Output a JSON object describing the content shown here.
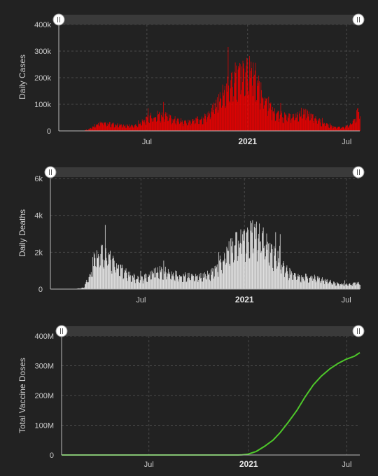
{
  "colors": {
    "background": "#222222",
    "grid": "#4a4a4a",
    "axis": "#bbbbbb",
    "text": "#cccccc",
    "scrollbar_track": "#3a3a3a",
    "handle": "#ffffff"
  },
  "chart_data": [
    {
      "type": "bar",
      "ylabel": "Daily Cases",
      "color": "#ee0000",
      "ylim": [
        0,
        400000
      ],
      "yticks": [
        0,
        100000,
        200000,
        300000,
        400000
      ],
      "ytick_labels": [
        "0",
        "100k",
        "200k",
        "300k",
        "400k"
      ],
      "xticks": [
        {
          "date": "2020-07-01",
          "label": "Jul",
          "bold": false
        },
        {
          "date": "2021-01-01",
          "label": "2021",
          "bold": true
        },
        {
          "date": "2021-07-01",
          "label": "Jul",
          "bold": false
        }
      ],
      "xlim": [
        "2020-01-22",
        "2021-07-25"
      ],
      "grid": true,
      "range_slider": true,
      "series_profile": [
        [
          "2020-01-22",
          0
        ],
        [
          "2020-03-05",
          200
        ],
        [
          "2020-03-15",
          5000
        ],
        [
          "2020-03-25",
          18000
        ],
        [
          "2020-04-05",
          31000
        ],
        [
          "2020-04-15",
          30000
        ],
        [
          "2020-05-01",
          27000
        ],
        [
          "2020-05-20",
          22000
        ],
        [
          "2020-06-05",
          21000
        ],
        [
          "2020-06-15",
          25000
        ],
        [
          "2020-06-25",
          42000
        ],
        [
          "2020-07-05",
          55000
        ],
        [
          "2020-07-20",
          67000
        ],
        [
          "2020-07-31",
          63000
        ],
        [
          "2020-08-15",
          50000
        ],
        [
          "2020-09-01",
          40000
        ],
        [
          "2020-09-10",
          34000
        ],
        [
          "2020-09-25",
          42000
        ],
        [
          "2020-10-10",
          52000
        ],
        [
          "2020-10-25",
          75000
        ],
        [
          "2020-11-05",
          110000
        ],
        [
          "2020-11-15",
          160000
        ],
        [
          "2020-11-25",
          175000
        ],
        [
          "2020-12-05",
          210000
        ],
        [
          "2020-12-18",
          230000
        ],
        [
          "2021-01-02",
          230000
        ],
        [
          "2021-01-08",
          270000
        ],
        [
          "2021-01-15",
          215000
        ],
        [
          "2021-01-25",
          160000
        ],
        [
          "2021-02-05",
          120000
        ],
        [
          "2021-02-15",
          80000
        ],
        [
          "2021-02-28",
          65000
        ],
        [
          "2021-03-15",
          55000
        ],
        [
          "2021-04-01",
          62000
        ],
        [
          "2021-04-15",
          72000
        ],
        [
          "2021-04-25",
          62000
        ],
        [
          "2021-05-10",
          42000
        ],
        [
          "2021-05-25",
          25000
        ],
        [
          "2021-06-10",
          15000
        ],
        [
          "2021-06-25",
          14000
        ],
        [
          "2021-07-05",
          22000
        ],
        [
          "2021-07-15",
          50000
        ],
        [
          "2021-07-25",
          90000
        ]
      ]
    },
    {
      "type": "bar",
      "ylabel": "Daily Deaths",
      "color": "#eeeeee",
      "ylim": [
        0,
        6000
      ],
      "yticks": [
        0,
        2000,
        4000,
        6000
      ],
      "ytick_labels": [
        "0",
        "2k",
        "4k",
        "6k"
      ],
      "xticks": [
        {
          "date": "2020-07-01",
          "label": "Jul",
          "bold": false
        },
        {
          "date": "2021-01-01",
          "label": "2021",
          "bold": true
        },
        {
          "date": "2021-07-01",
          "label": "Jul",
          "bold": false
        }
      ],
      "xlim": [
        "2020-01-22",
        "2021-07-25"
      ],
      "grid": true,
      "range_slider": true,
      "series_profile": [
        [
          "2020-01-22",
          0
        ],
        [
          "2020-03-05",
          5
        ],
        [
          "2020-03-20",
          80
        ],
        [
          "2020-03-31",
          700
        ],
        [
          "2020-04-08",
          1700
        ],
        [
          "2020-04-15",
          2100
        ],
        [
          "2020-04-25",
          2000
        ],
        [
          "2020-05-05",
          1900
        ],
        [
          "2020-05-20",
          1350
        ],
        [
          "2020-06-01",
          1000
        ],
        [
          "2020-06-15",
          750
        ],
        [
          "2020-06-30",
          600
        ],
        [
          "2020-07-15",
          800
        ],
        [
          "2020-07-25",
          1000
        ],
        [
          "2020-08-05",
          1100
        ],
        [
          "2020-08-20",
          950
        ],
        [
          "2020-09-05",
          800
        ],
        [
          "2020-09-20",
          750
        ],
        [
          "2020-10-05",
          700
        ],
        [
          "2020-10-20",
          750
        ],
        [
          "2020-11-05",
          1000
        ],
        [
          "2020-11-20",
          1600
        ],
        [
          "2020-12-05",
          2300
        ],
        [
          "2020-12-20",
          2750
        ],
        [
          "2021-01-05",
          3000
        ],
        [
          "2021-01-15",
          3300
        ],
        [
          "2021-01-25",
          3100
        ],
        [
          "2021-02-05",
          2800
        ],
        [
          "2021-02-20",
          2100
        ],
        [
          "2021-03-05",
          1600
        ],
        [
          "2021-03-20",
          1000
        ],
        [
          "2021-04-05",
          750
        ],
        [
          "2021-04-20",
          700
        ],
        [
          "2021-05-05",
          650
        ],
        [
          "2021-05-20",
          550
        ],
        [
          "2021-06-05",
          400
        ],
        [
          "2021-06-20",
          300
        ],
        [
          "2021-07-05",
          280
        ],
        [
          "2021-07-25",
          350
        ]
      ]
    },
    {
      "type": "line",
      "ylabel": "Total Vaccine Doses",
      "color": "#4ec82a",
      "ylim": [
        0,
        400000000
      ],
      "yticks": [
        0,
        100000000,
        200000000,
        300000000,
        400000000
      ],
      "ytick_labels": [
        "0",
        "100M",
        "200M",
        "300M",
        "400M"
      ],
      "xticks": [
        {
          "date": "2020-07-01",
          "label": "Jul",
          "bold": false
        },
        {
          "date": "2021-01-01",
          "label": "2021",
          "bold": true
        },
        {
          "date": "2021-07-01",
          "label": "Jul",
          "bold": false
        }
      ],
      "xlim": [
        "2020-01-22",
        "2021-07-25"
      ],
      "grid": true,
      "range_slider": true,
      "series": [
        [
          "2020-01-22",
          0
        ],
        [
          "2020-12-13",
          0
        ],
        [
          "2020-12-20",
          500000
        ],
        [
          "2020-12-31",
          3000000
        ],
        [
          "2021-01-15",
          12000000
        ],
        [
          "2021-01-31",
          30000000
        ],
        [
          "2021-02-15",
          50000000
        ],
        [
          "2021-02-28",
          75000000
        ],
        [
          "2021-03-15",
          110000000
        ],
        [
          "2021-03-31",
          150000000
        ],
        [
          "2021-04-15",
          195000000
        ],
        [
          "2021-04-30",
          235000000
        ],
        [
          "2021-05-15",
          265000000
        ],
        [
          "2021-05-31",
          290000000
        ],
        [
          "2021-06-15",
          308000000
        ],
        [
          "2021-06-30",
          322000000
        ],
        [
          "2021-07-15",
          332000000
        ],
        [
          "2021-07-25",
          344000000
        ]
      ]
    }
  ]
}
